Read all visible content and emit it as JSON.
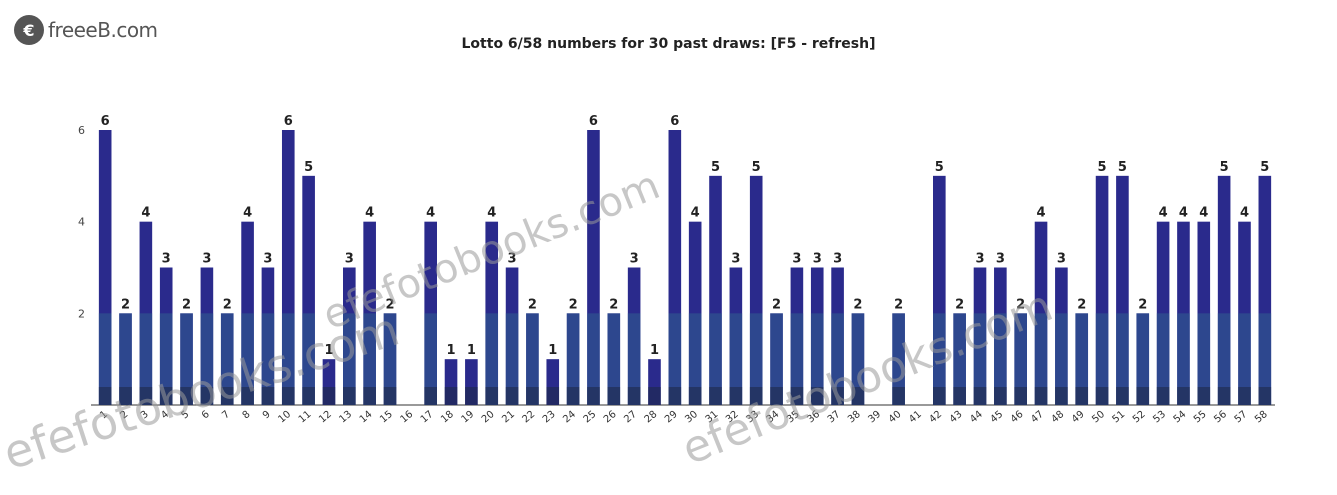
{
  "logo": {
    "mark": "€",
    "text": "freeeB.com"
  },
  "watermarks": [
    "efefotobooks.com",
    "efefotobooks.com",
    "efefotobooks.com"
  ],
  "chart_data": {
    "type": "bar",
    "title": "Lotto 6/58 numbers for 30 past draws: [F5 - refresh]",
    "categories": [
      "1",
      "2",
      "3",
      "4",
      "5",
      "6",
      "7",
      "8",
      "9",
      "10",
      "11",
      "12",
      "13",
      "14",
      "15",
      "16",
      "17",
      "18",
      "19",
      "20",
      "21",
      "22",
      "23",
      "24",
      "25",
      "26",
      "27",
      "28",
      "29",
      "30",
      "31",
      "32",
      "33",
      "34",
      "35",
      "36",
      "37",
      "38",
      "39",
      "40",
      "41",
      "42",
      "43",
      "44",
      "45",
      "46",
      "47",
      "48",
      "49",
      "50",
      "51",
      "52",
      "53",
      "54",
      "55",
      "56",
      "57",
      "58"
    ],
    "values": [
      6,
      2,
      4,
      3,
      2,
      3,
      2,
      4,
      3,
      6,
      5,
      1,
      3,
      4,
      2,
      0,
      4,
      1,
      1,
      4,
      3,
      2,
      1,
      2,
      6,
      2,
      3,
      1,
      6,
      4,
      5,
      3,
      5,
      2,
      3,
      3,
      3,
      2,
      0,
      2,
      0,
      5,
      2,
      3,
      3,
      2,
      4,
      3,
      2,
      5,
      5,
      2,
      4,
      4,
      4,
      5,
      4,
      5
    ],
    "ylim": [
      0,
      6
    ],
    "yticks": [
      2,
      4,
      6
    ],
    "colors": {
      "bar_dark": "#2a2a8c",
      "bar_teal": "#2f5f8f",
      "bar_base": "#1e2a4a"
    }
  }
}
